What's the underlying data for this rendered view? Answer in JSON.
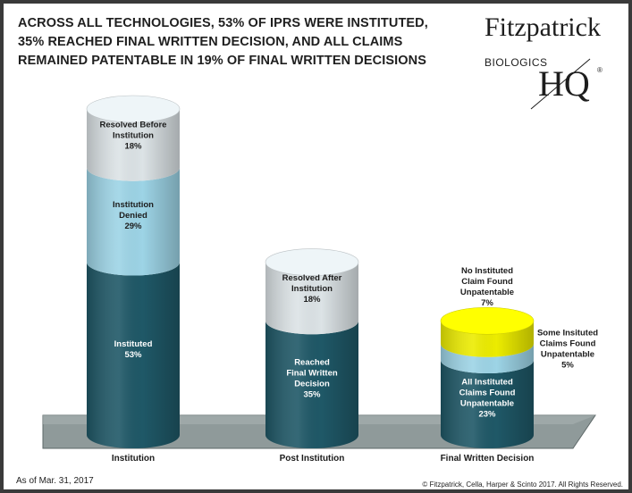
{
  "title_lines": [
    "ACROSS ALL TECHNOLOGIES, 53% OF IPRS WERE INSTITUTED,",
    "35% REACHED FINAL WRITTEN DECISION, AND ALL CLAIMS",
    "REMAINED PATENTABLE IN 19% OF FINAL WRITTEN DECISIONS"
  ],
  "logo": {
    "name": "Fitzpatrick",
    "sub": "BIOLOGICS",
    "hq": "HQ",
    "reg": "®"
  },
  "footer": {
    "date": "As of Mar. 31, 2017",
    "copyright": "© Fitzpatrick, Cella, Harper & Scinto 2017. All Rights Reserved."
  },
  "colors": {
    "instituted": "#1f5867",
    "denied": "#9dd4e6",
    "resolved": "#dce3e6",
    "unpatentable_yellow": "#ecec00",
    "floor": "#8f9a9a"
  },
  "chart_data": {
    "type": "bar",
    "stacked": true,
    "categories": [
      "Institution",
      "Post Institution",
      "Final Written Decision"
    ],
    "segments": [
      [
        {
          "label_lines": [
            "Instituted",
            "53%"
          ],
          "value": 53,
          "color": "instituted",
          "text": "light"
        },
        {
          "label_lines": [
            "Institution",
            "Denied",
            "29%"
          ],
          "value": 29,
          "color": "denied",
          "text": "dark"
        },
        {
          "label_lines": [
            "Resolved Before",
            "Institution",
            "18%"
          ],
          "value": 18,
          "color": "resolved",
          "text": "dark"
        }
      ],
      [
        {
          "label_lines": [
            "Reached",
            "Final Written",
            "Decision",
            "35%"
          ],
          "value": 35,
          "color": "instituted",
          "text": "light"
        },
        {
          "label_lines": [
            "Resolved After",
            "Institution",
            "18%"
          ],
          "value": 18,
          "color": "resolved",
          "text": "dark"
        }
      ],
      [
        {
          "label_lines": [
            "All Instituted",
            "Claims Found",
            "Unpatentable",
            "23%"
          ],
          "value": 23,
          "color": "instituted",
          "text": "light"
        },
        {
          "label_lines": [
            "Some Insituted",
            "Claims Found",
            "Unpatentable",
            "5%"
          ],
          "value": 5,
          "color": "denied",
          "text": "outside-right"
        },
        {
          "label_lines": [
            "No Instituted",
            "Claim Found",
            "Unpatentable",
            "7%"
          ],
          "value": 7,
          "color": "unpatentable_yellow",
          "text": "outside-top"
        }
      ]
    ],
    "ylim": [
      0,
      100
    ],
    "grid": false,
    "legend": "none"
  }
}
